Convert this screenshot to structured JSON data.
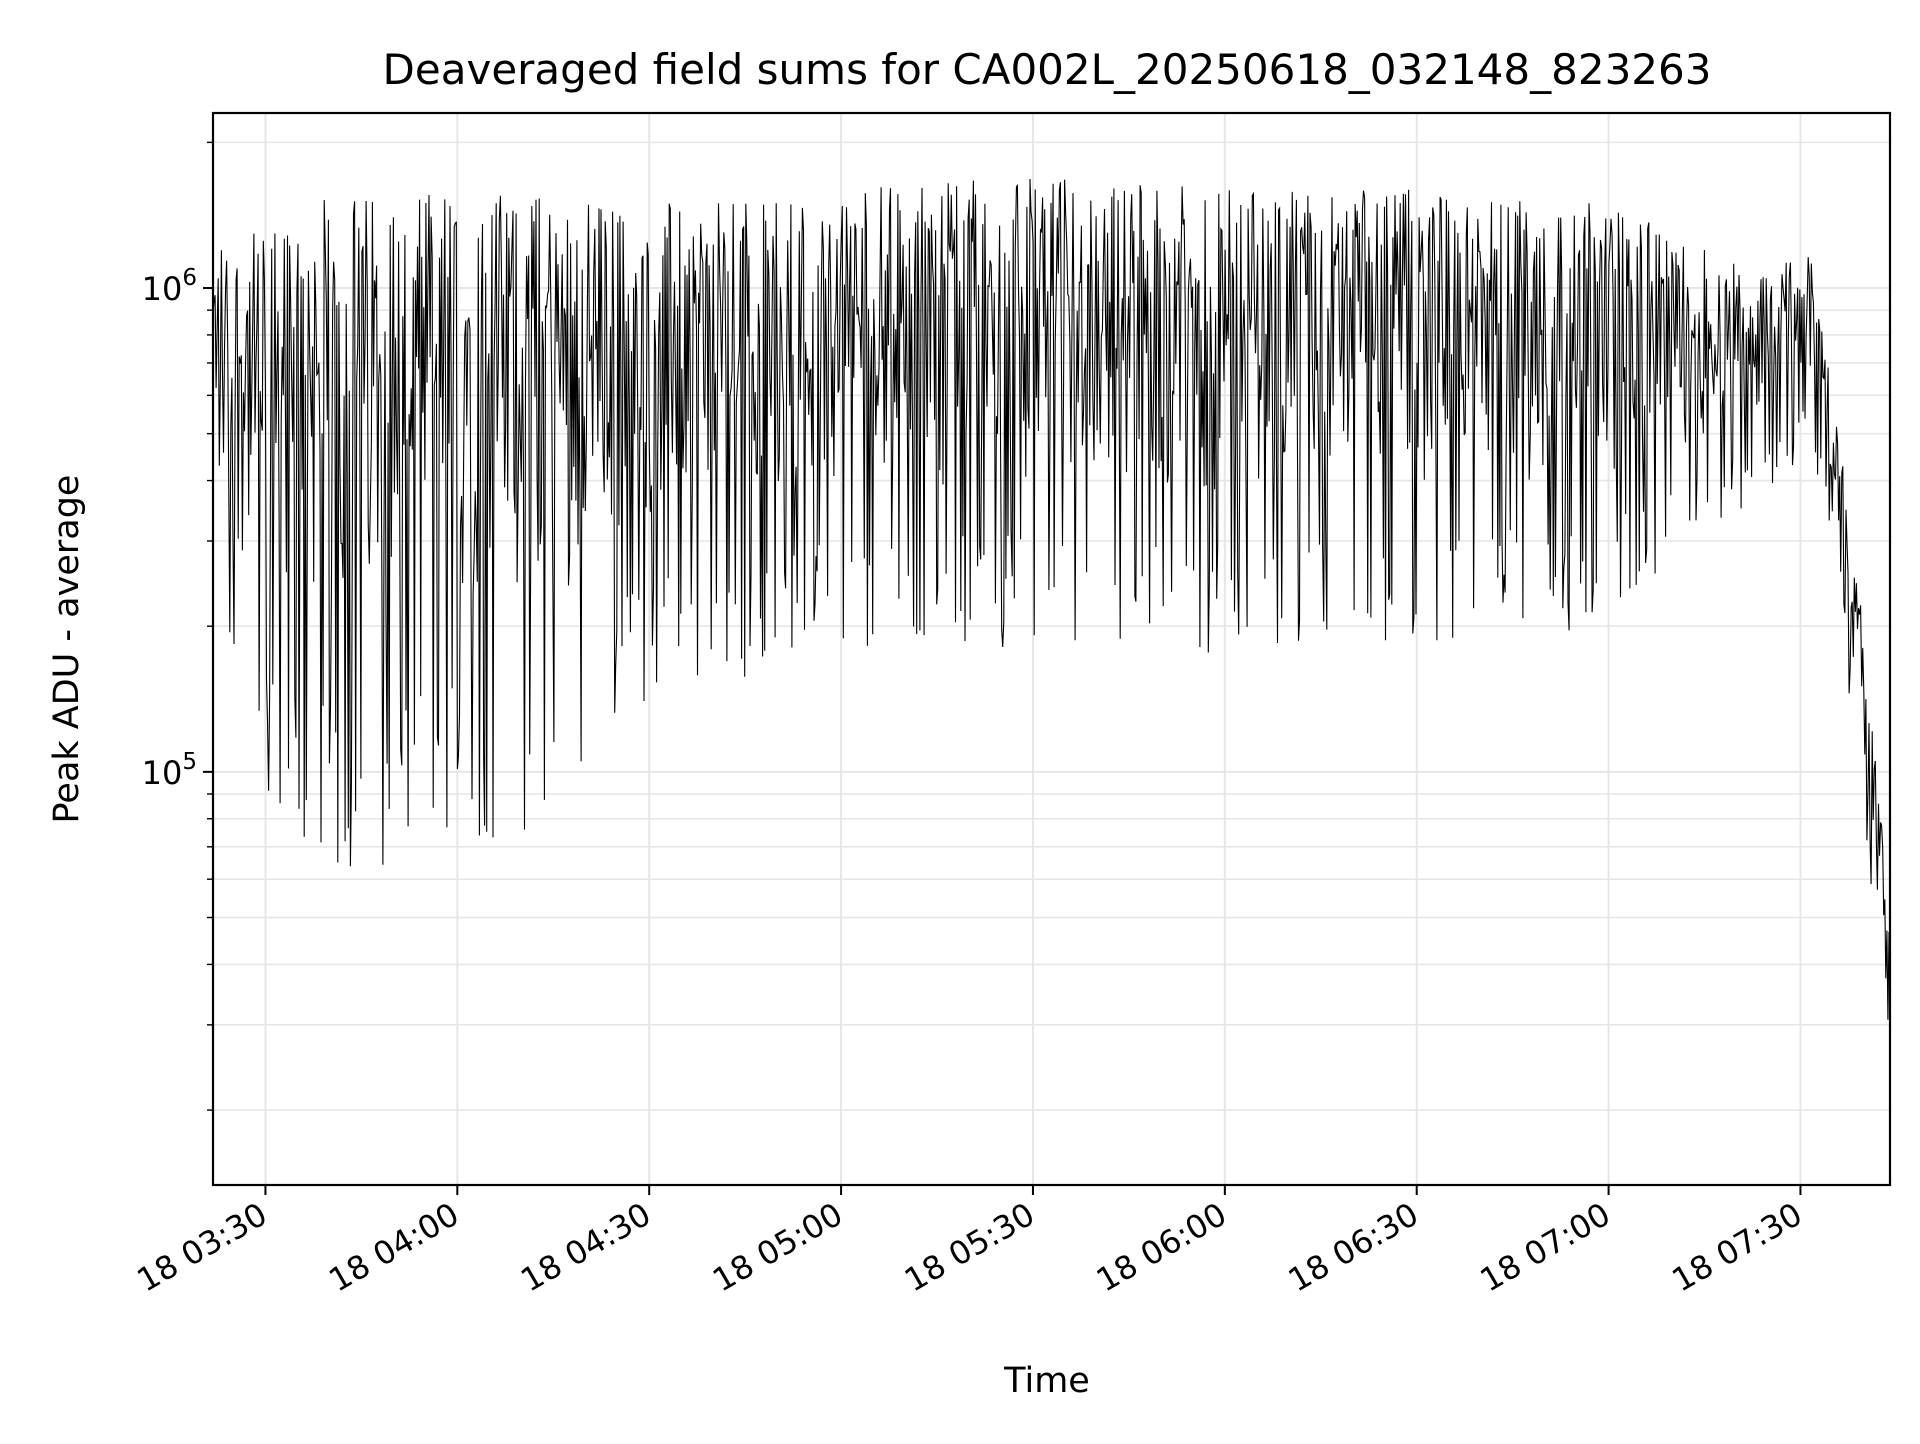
{
  "chart_data": {
    "type": "line",
    "title": "Deaveraged field sums for CA002L_20250618_032148_823263",
    "xlabel": "Time",
    "ylabel": "Peak ADU - average",
    "yscale": "log",
    "grid": true,
    "x_range": [
      "2025-06-18 03:21:48",
      "2025-06-18 07:44:00"
    ],
    "ylim": [
      14000,
      2300000
    ],
    "x_ticks": [
      {
        "time": "2025-06-18 03:30",
        "label": "18 03:30"
      },
      {
        "time": "2025-06-18 04:00",
        "label": "18 04:00"
      },
      {
        "time": "2025-06-18 04:30",
        "label": "18 04:30"
      },
      {
        "time": "2025-06-18 05:00",
        "label": "18 05:00"
      },
      {
        "time": "2025-06-18 05:30",
        "label": "18 05:30"
      },
      {
        "time": "2025-06-18 06:00",
        "label": "18 06:00"
      },
      {
        "time": "2025-06-18 06:30",
        "label": "18 06:30"
      },
      {
        "time": "2025-06-18 07:00",
        "label": "18 07:00"
      },
      {
        "time": "2025-06-18 07:30",
        "label": "18 07:30"
      }
    ],
    "y_major_ticks": [
      {
        "value": 100000,
        "base": "10",
        "exponent": "5"
      },
      {
        "value": 1000000,
        "base": "10",
        "exponent": "6"
      }
    ],
    "line_color": "#000000",
    "grid_color": "#e6e6e6",
    "envelope": {
      "times": [
        "2025-06-18 03:21:48",
        "2025-06-18 03:30",
        "2025-06-18 03:40",
        "2025-06-18 04:00",
        "2025-06-18 04:15",
        "2025-06-18 04:25",
        "2025-06-18 04:40",
        "2025-06-18 05:00",
        "2025-06-18 05:30",
        "2025-06-18 06:00",
        "2025-06-18 06:30",
        "2025-06-18 07:00",
        "2025-06-18 07:15",
        "2025-06-18 07:25",
        "2025-06-18 07:32",
        "2025-06-18 07:36",
        "2025-06-18 07:40",
        "2025-06-18 07:44"
      ],
      "low": [
        160000,
        85000,
        60000,
        70000,
        75000,
        130000,
        150000,
        180000,
        180000,
        170000,
        180000,
        200000,
        300000,
        380000,
        450000,
        250000,
        60000,
        20000
      ],
      "high": [
        1300000,
        1300000,
        1600000,
        1600000,
        1600000,
        1500000,
        1500000,
        1600000,
        1700000,
        1600000,
        1600000,
        1500000,
        1200000,
        1100000,
        1200000,
        500000,
        200000,
        50000
      ]
    }
  }
}
